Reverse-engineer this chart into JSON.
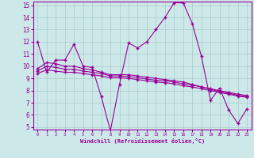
{
  "xlabel": "Windchill (Refroidissement éolien,°C)",
  "ylabel": "",
  "x": [
    0,
    1,
    2,
    3,
    4,
    5,
    6,
    7,
    8,
    9,
    10,
    11,
    12,
    13,
    14,
    15,
    16,
    17,
    18,
    19,
    20,
    21,
    22,
    23
  ],
  "line1": [
    12.0,
    9.5,
    10.5,
    10.5,
    11.8,
    10.0,
    9.9,
    7.5,
    4.7,
    8.5,
    11.9,
    11.5,
    12.0,
    13.0,
    14.0,
    15.2,
    15.2,
    13.5,
    10.8,
    7.2,
    8.2,
    6.4,
    5.3,
    6.5
  ],
  "line2": [
    9.8,
    10.3,
    10.2,
    10.0,
    10.0,
    9.8,
    9.7,
    9.5,
    9.3,
    9.3,
    9.3,
    9.2,
    9.1,
    9.0,
    8.9,
    8.8,
    8.7,
    8.5,
    8.3,
    8.1,
    7.9,
    7.8,
    7.6,
    7.5
  ],
  "line3": [
    9.6,
    10.0,
    9.9,
    9.75,
    9.75,
    9.6,
    9.5,
    9.4,
    9.2,
    9.2,
    9.15,
    9.05,
    8.95,
    8.85,
    8.8,
    8.7,
    8.55,
    8.45,
    8.3,
    8.15,
    8.0,
    7.85,
    7.7,
    7.6
  ],
  "line4": [
    9.4,
    9.7,
    9.6,
    9.5,
    9.5,
    9.4,
    9.3,
    9.2,
    9.05,
    9.05,
    9.0,
    8.9,
    8.8,
    8.7,
    8.65,
    8.55,
    8.4,
    8.3,
    8.15,
    8.0,
    7.85,
    7.7,
    7.55,
    7.45
  ],
  "color": "#990099",
  "bg_color": "#cce8e8",
  "grid_color": "#aacccc",
  "ylim": [
    5,
    15
  ],
  "xlim": [
    0,
    23
  ],
  "yticks": [
    5,
    6,
    7,
    8,
    9,
    10,
    11,
    12,
    13,
    14,
    15
  ],
  "xticks": [
    0,
    1,
    2,
    3,
    4,
    5,
    6,
    7,
    8,
    9,
    10,
    11,
    12,
    13,
    14,
    15,
    16,
    17,
    18,
    19,
    20,
    21,
    22,
    23
  ],
  "marker": "+"
}
